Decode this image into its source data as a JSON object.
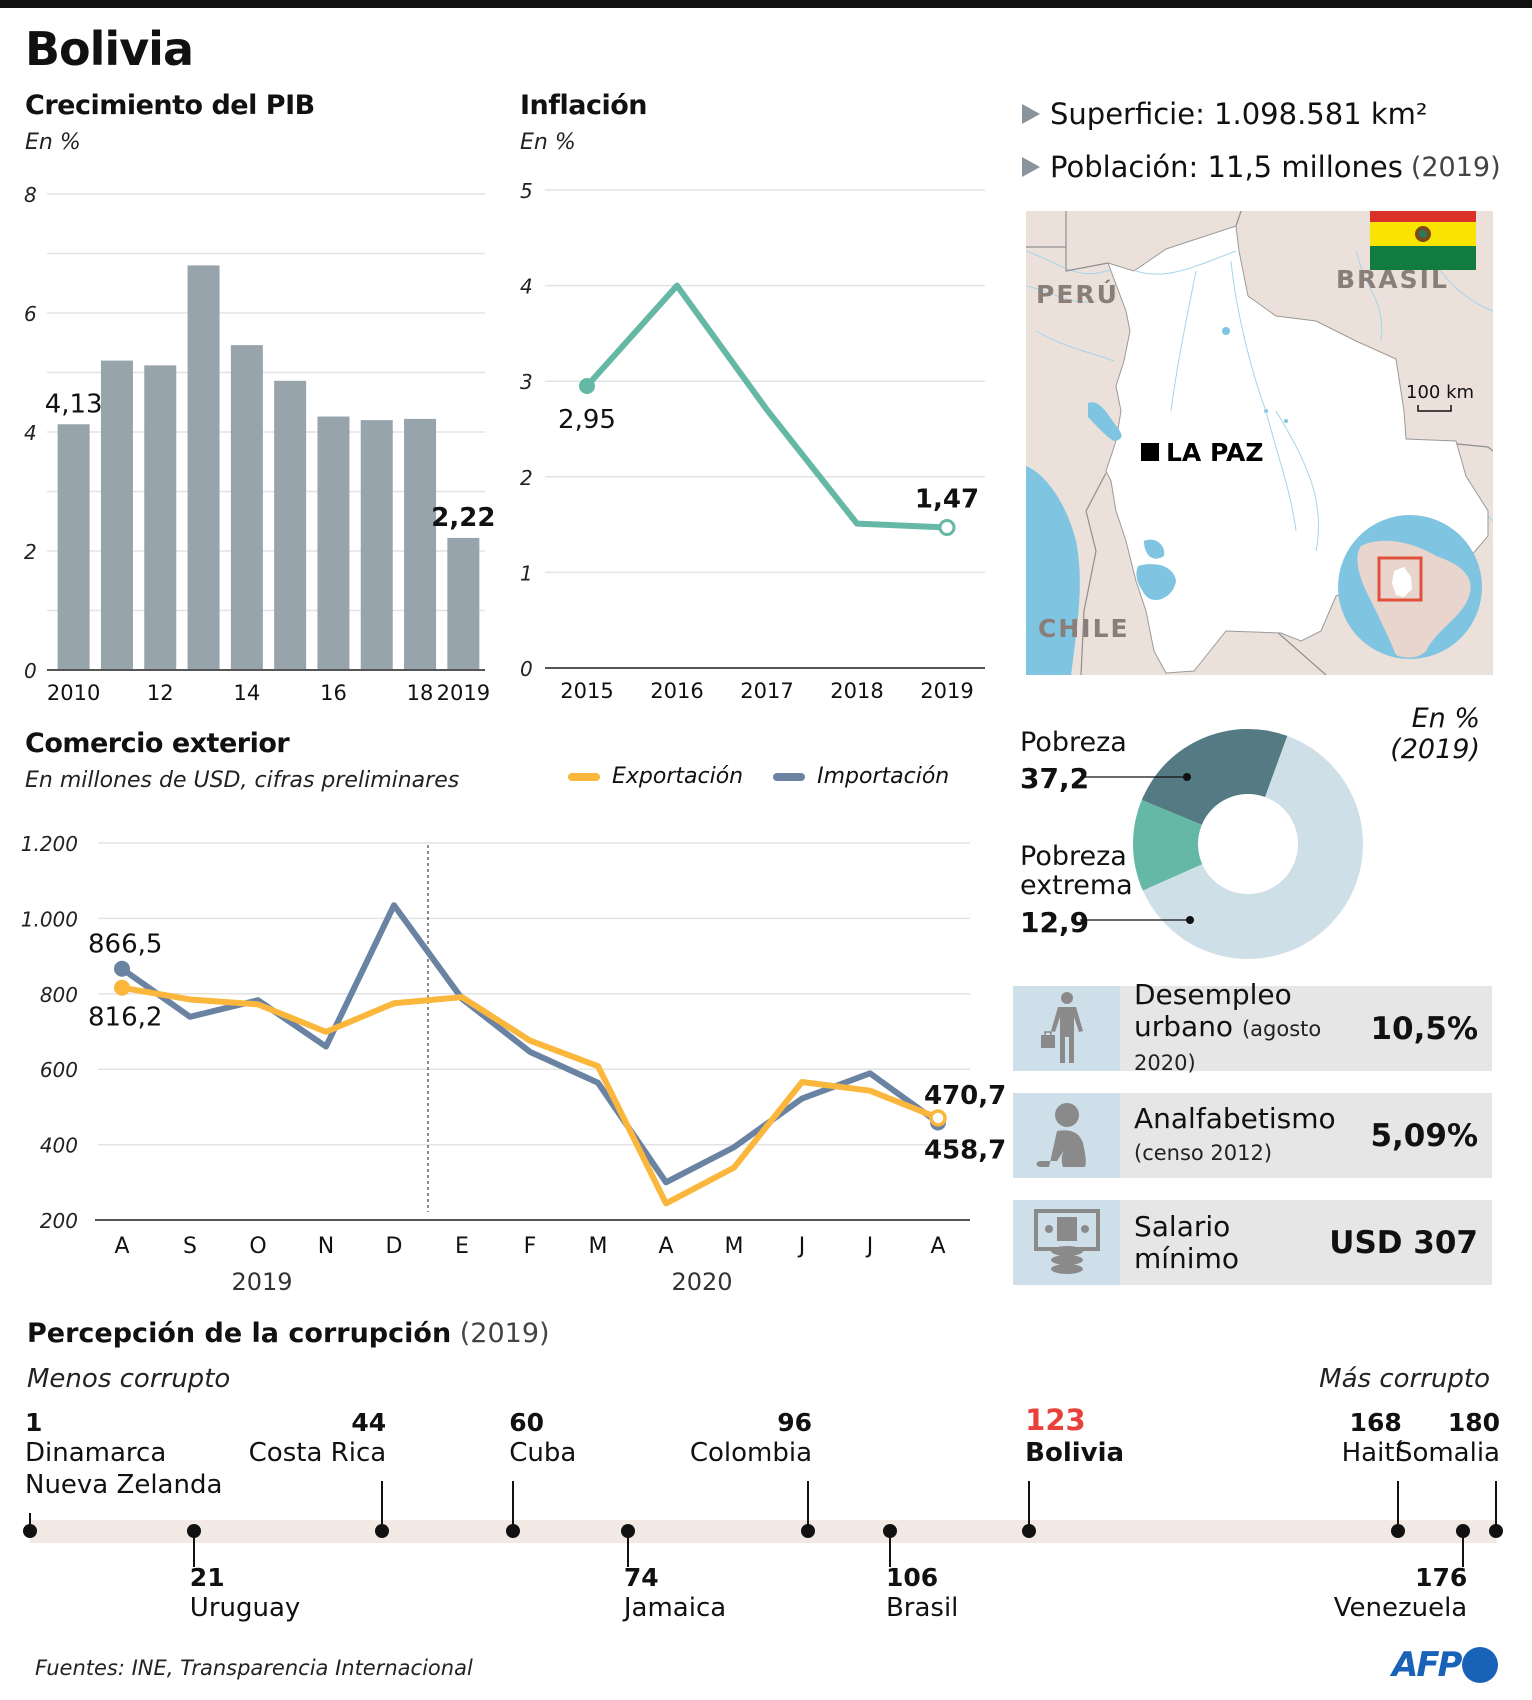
{
  "title": "Bolivia",
  "facts": {
    "superficie_label": "Superficie: 1.098.581 km²",
    "poblacion_label": "Población: 11,5 millones",
    "poblacion_year": "(2019)"
  },
  "map": {
    "labels": {
      "peru": "PERÚ",
      "brasil": "BRASIL",
      "chile": "CHILE",
      "capital": "LA PAZ",
      "scale": "100 km"
    },
    "flag_colors": [
      "#da3228",
      "#f9e300",
      "#117c3f"
    ]
  },
  "colors": {
    "bar": "#97a4ac",
    "inflation": "#66b8a6",
    "export": "#fbb63c",
    "import": "#6a83a3",
    "poverty": "#547b83",
    "extreme_poverty": "#66b8a6",
    "rest": "#cfdfe8",
    "bolivia_rank": "#e8403a",
    "afp": "#1862b8"
  },
  "chart_data": [
    {
      "type": "bar",
      "title": "Crecimiento del PIB",
      "subtitle": "En %",
      "categories": [
        "2010",
        "2011",
        "2012",
        "2013",
        "2014",
        "2015",
        "2016",
        "2017",
        "2018",
        "2019"
      ],
      "tick_labels": [
        "2010",
        "",
        "12",
        "",
        "14",
        "",
        "16",
        "",
        "18",
        "2019"
      ],
      "values": [
        4.13,
        5.2,
        5.12,
        6.8,
        5.46,
        4.86,
        4.26,
        4.2,
        4.22,
        2.22
      ],
      "data_labels": {
        "first": "4,13",
        "last": "2,22"
      },
      "ylim": [
        0,
        8
      ],
      "yticks": [
        "0",
        "2",
        "4",
        "6",
        "8"
      ],
      "grid": true
    },
    {
      "type": "line",
      "title": "Inflación",
      "subtitle": "En %",
      "categories": [
        "2015",
        "2016",
        "2017",
        "2018",
        "2019"
      ],
      "values": [
        2.95,
        4.0,
        2.7,
        1.51,
        1.47
      ],
      "data_labels": {
        "first": "2,95",
        "last": "1,47"
      },
      "ylim": [
        0,
        5
      ],
      "yticks": [
        "0",
        "1",
        "2",
        "3",
        "4",
        "5"
      ],
      "grid": true
    },
    {
      "type": "line",
      "title": "Comercio exterior",
      "subtitle": "En millones de USD, cifras preliminares",
      "categories": [
        "A",
        "S",
        "O",
        "N",
        "D",
        "E",
        "F",
        "M",
        "A",
        "M",
        "J",
        "J",
        "A"
      ],
      "year_labels": [
        "2019",
        "2020"
      ],
      "series": [
        {
          "name": "Exportación",
          "values": [
            816.2,
            785,
            772,
            699,
            775,
            791,
            676,
            608,
            244,
            339,
            566,
            543,
            470.7
          ]
        },
        {
          "name": "Importación",
          "values": [
            866.5,
            739,
            783,
            660,
            1035,
            787,
            646,
            564,
            300,
            393,
            522,
            589,
            458.7
          ]
        }
      ],
      "data_labels": {
        "import_first": "866,5",
        "export_first": "816,2",
        "export_last": "470,7",
        "import_last": "458,7"
      },
      "ylim": [
        200,
        1200
      ],
      "yticks": [
        "200",
        "400",
        "600",
        "800",
        "1.000",
        "1.200"
      ],
      "legend": "top-right",
      "grid": true
    },
    {
      "type": "pie",
      "subtitle": "En %",
      "year": "(2019)",
      "slices": [
        {
          "name": "Pobreza",
          "value": 37.2,
          "label": "37,2"
        },
        {
          "name": "Pobreza extrema",
          "value": 12.9,
          "label": "12,9"
        }
      ],
      "labels": {
        "pobreza": "Pobreza",
        "extrema_line1": "Pobreza",
        "extrema_line2": "extrema"
      }
    }
  ],
  "indicators": [
    {
      "label1": "Desempleo",
      "label2": "urbano",
      "note": "(agosto 2020)",
      "value": "10,5%",
      "icon": "unemployed-person-icon"
    },
    {
      "label1": "Analfabetismo",
      "label2": "",
      "note": "(censo 2012)",
      "value": "5,09%",
      "icon": "reading-person-icon"
    },
    {
      "label1": "Salario",
      "label2": "mínimo",
      "note": "",
      "value": "USD 307",
      "icon": "money-icon"
    }
  ],
  "corruption": {
    "title": "Percepción de la corrupción",
    "year": "(2019)",
    "left_label": "Menos corrupto",
    "right_label": "Más corrupto",
    "max_rank": 180,
    "entries": [
      {
        "rank": 1,
        "rank_label": "1",
        "names": [
          "Dinamarca",
          "Nueva Zelanda"
        ],
        "side": "top"
      },
      {
        "rank": 21,
        "rank_label": "21",
        "names": [
          "Uruguay"
        ],
        "side": "bottom"
      },
      {
        "rank": 44,
        "rank_label": "44",
        "names": [
          "Costa Rica"
        ],
        "side": "top"
      },
      {
        "rank": 60,
        "rank_label": "60",
        "names": [
          "Cuba"
        ],
        "side": "top"
      },
      {
        "rank": 74,
        "rank_label": "74",
        "names": [
          "Jamaica"
        ],
        "side": "bottom"
      },
      {
        "rank": 96,
        "rank_label": "96",
        "names": [
          "Colombia"
        ],
        "side": "top"
      },
      {
        "rank": 106,
        "rank_label": "106",
        "names": [
          "Brasil"
        ],
        "side": "bottom"
      },
      {
        "rank": 123,
        "rank_label": "123",
        "names": [
          "Bolivia"
        ],
        "side": "top",
        "highlight": true
      },
      {
        "rank": 168,
        "rank_label": "168",
        "names": [
          "Haití"
        ],
        "side": "top"
      },
      {
        "rank": 176,
        "rank_label": "176",
        "names": [
          "Venezuela"
        ],
        "side": "bottom"
      },
      {
        "rank": 180,
        "rank_label": "180",
        "names": [
          "Somalia"
        ],
        "side": "top"
      }
    ]
  },
  "footer": {
    "sources": "Fuentes: INE, Transparencia Internacional",
    "logo": "AFP"
  }
}
